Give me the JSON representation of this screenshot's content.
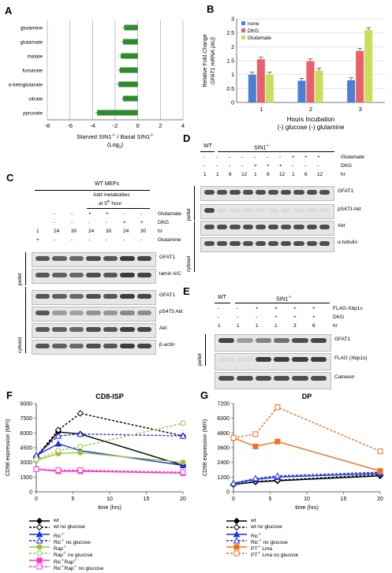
{
  "panels": {
    "A": "A",
    "B": "B",
    "C": "C",
    "D": "D",
    "E": "E",
    "F": "F",
    "G": "G"
  },
  "panelA": {
    "chart_data": {
      "type": "bar",
      "categories": [
        "glutamine",
        "glutamate",
        "malate",
        "fumarate",
        "α-ketoglutarate",
        "citrate",
        "pyruvate"
      ],
      "values": [
        -1.2,
        -1.3,
        -1.5,
        -1.6,
        -1.7,
        -1.3,
        -3.6
      ],
      "xlim": [
        -8,
        4
      ],
      "xticks": [
        "-8",
        "-6",
        "-4",
        "-2",
        "0",
        "2",
        "4"
      ],
      "xlabel_line1": "Starved SIN1",
      "xlabel_sup1": "-/-",
      "xlabel_mid": " / Basal SIN1",
      "xlabel_sup2": "-/-",
      "xlabel_line2": "(Log",
      "xlabel_sub": "2",
      "xlabel_end": ")",
      "bar_color": "#2e8b2e"
    }
  },
  "panelB": {
    "chart_data": {
      "type": "bar",
      "categories": [
        "1",
        "2",
        "3"
      ],
      "series": [
        {
          "name": "none",
          "values": [
            1.0,
            0.78,
            0.8
          ],
          "color": "#4a7fd4"
        },
        {
          "name": "DKG",
          "values": [
            1.55,
            1.48,
            1.85
          ],
          "color": "#e8606a"
        },
        {
          "name": "Glutamate",
          "values": [
            1.0,
            1.15,
            2.6
          ],
          "color": "#c7df5a"
        }
      ],
      "ylim": [
        0,
        3
      ],
      "yticks": [
        "0",
        "0.5",
        "1",
        "1.5",
        "2",
        "2.5",
        "3"
      ],
      "ylabel_line1": "Relative Fold Change",
      "ylabel_line2": "GFAT1 mRNA (AU)",
      "xlabel_line1": "Hours Incubation",
      "xlabel_line2": "(-) glucose (-) glutamine"
    }
  },
  "panelC": {
    "header": "WT MEFs",
    "subheader": "Add metabolites",
    "subheader2": "at 5",
    "subheader_sup": "th",
    "subheader_end": " hour",
    "rows": [
      {
        "label": "Glutamate",
        "cells": [
          "",
          "-",
          "-",
          "+",
          "+",
          "-",
          "-"
        ]
      },
      {
        "label": "DKG",
        "cells": [
          "",
          "-",
          "-",
          "-",
          "-",
          "+",
          "+"
        ]
      },
      {
        "label": "hr",
        "cells": [
          "1",
          "24",
          "30",
          "24",
          "30",
          "24",
          "30"
        ]
      },
      {
        "label": "Glutamine",
        "cells": [
          "+",
          "-",
          "-",
          "-",
          "-",
          "-",
          "-"
        ]
      }
    ],
    "blots": [
      "GFAT1",
      "lamin A/C",
      "GFAT1",
      "pS473 Akt",
      "Akt",
      "β-actin"
    ],
    "fractions": [
      "pellet",
      "cytosol"
    ]
  },
  "panelD": {
    "wt": "WT",
    "ko": "SIN1",
    "ko_sup": "-/-",
    "rows": [
      {
        "label": "Glutamate",
        "cells": [
          "-",
          "-",
          "-",
          "-",
          "-",
          "-",
          "-",
          "+",
          "+",
          "+"
        ]
      },
      {
        "label": "DKG",
        "cells": [
          "-",
          "-",
          "-",
          "-",
          "+",
          "+",
          "+",
          "-",
          "-",
          "-"
        ]
      },
      {
        "label": "hr",
        "cells": [
          "1",
          "1",
          "6",
          "12",
          "1",
          "6",
          "12",
          "1",
          "6",
          "12"
        ]
      }
    ],
    "blots": [
      "GFAT1",
      "pS473 Akt",
      "Akt",
      "α-tubulin"
    ],
    "fractions": [
      "pellet",
      "cytosol"
    ]
  },
  "panelE": {
    "wt": "WT",
    "ko": "SIN1",
    "ko_sup": "-/-",
    "rows": [
      {
        "label": "FLAG-Xbp1s",
        "cells": [
          "-",
          "-",
          "+",
          "+",
          "+",
          "+"
        ]
      },
      {
        "label": "DKG",
        "cells": [
          "-",
          "-",
          "-",
          "+",
          "+",
          "+"
        ]
      },
      {
        "label": "hr",
        "cells": [
          "1",
          "1",
          "1",
          "1",
          "3",
          "6"
        ]
      }
    ],
    "blots": [
      "GFAT1",
      "FLAG (Xbp1s)",
      "Calnexin"
    ],
    "fractions": [
      "pellet"
    ]
  },
  "panelF": {
    "chart_data": {
      "type": "line",
      "title": "CD8-ISP",
      "x": [
        0,
        3,
        6,
        20
      ],
      "ylim": [
        0,
        9000
      ],
      "yticks": [
        "0",
        "1500",
        "3000",
        "4500",
        "6000",
        "7500",
        "9000"
      ],
      "xticks": [
        "0",
        "5",
        "10",
        "15",
        "20"
      ],
      "ylabel": "CD98 expression (MFI)",
      "xlabel": "time (hrs)",
      "series": [
        {
          "name": "wt",
          "values": [
            3500,
            6100,
            5900,
            2700
          ],
          "color": "#000000",
          "dashed": false,
          "marker": "diamond",
          "filled": true
        },
        {
          "name": "wt no glucose",
          "values": [
            3600,
            6300,
            8000,
            5700
          ],
          "color": "#000000",
          "dashed": true,
          "marker": "diamond",
          "filled": false
        },
        {
          "name": "Ric",
          "values": [
            3700,
            4900,
            4200,
            2700
          ],
          "color": "#1a2fe0",
          "dashed": false,
          "marker": "triangle",
          "filled": true
        },
        {
          "name": "Ric no glucose",
          "values": [
            3700,
            5700,
            5900,
            5700
          ],
          "color": "#1a2fe0",
          "dashed": true,
          "marker": "triangle",
          "filled": false
        },
        {
          "name": "Rap",
          "values": [
            3200,
            3900,
            4000,
            3000
          ],
          "color": "#9ac13c",
          "dashed": false,
          "marker": "circle",
          "filled": true
        },
        {
          "name": "Rap no glucose",
          "values": [
            3300,
            4200,
            4600,
            7000
          ],
          "color": "#9ac13c",
          "dashed": true,
          "marker": "circle",
          "filled": false
        },
        {
          "name": "Ric/Rap",
          "values": [
            2300,
            2100,
            2100,
            1900
          ],
          "color": "#ff33cc",
          "dashed": false,
          "marker": "square",
          "filled": true
        },
        {
          "name": "Ric/Rap no glucose",
          "values": [
            2300,
            2200,
            2200,
            2000
          ],
          "color": "#ff33cc",
          "dashed": true,
          "marker": "square",
          "filled": false
        }
      ]
    },
    "legend": [
      {
        "text": "wt",
        "sup": ""
      },
      {
        "text": "wt no glucose",
        "sup": ""
      },
      {
        "text": "Ric",
        "sup": "-/-",
        "after": ""
      },
      {
        "text": "Ric",
        "sup": "-/-",
        "after": " no glucose"
      },
      {
        "text": "Rap",
        "sup": "-/-",
        "after": ""
      },
      {
        "text": "Rap",
        "sup": "-/-",
        "after": " no glucose"
      },
      {
        "text": "Ric",
        "sup": "-/-",
        "mid": "Rap",
        "sup2": "-/-",
        "after": ""
      },
      {
        "text": "Ric",
        "sup": "-/-",
        "mid": "Rap",
        "sup2": "-/-",
        "after": " no glucose"
      }
    ]
  },
  "panelG": {
    "chart_data": {
      "type": "line",
      "title": "DP",
      "x": [
        0,
        3,
        6,
        20
      ],
      "ylim": [
        0,
        7200
      ],
      "yticks": [
        "0",
        "1200",
        "2400",
        "3600",
        "4800",
        "6000",
        "7200"
      ],
      "xticks": [
        "0",
        "5",
        "10",
        "15",
        "20"
      ],
      "ylabel": "CD98 expression (MFI)",
      "xlabel": "time (hrs)",
      "series": [
        {
          "name": "wt",
          "values": [
            600,
            800,
            900,
            1300
          ],
          "color": "#000000",
          "dashed": false,
          "marker": "diamond",
          "filled": true
        },
        {
          "name": "wt no glucose",
          "values": [
            600,
            850,
            950,
            1400
          ],
          "color": "#000000",
          "dashed": true,
          "marker": "diamond",
          "filled": false
        },
        {
          "name": "Ric",
          "values": [
            700,
            1000,
            1200,
            1500
          ],
          "color": "#1a2fe0",
          "dashed": false,
          "marker": "triangle",
          "filled": true
        },
        {
          "name": "Ric no glucose",
          "values": [
            700,
            1100,
            1300,
            1600
          ],
          "color": "#1a2fe0",
          "dashed": true,
          "marker": "triangle",
          "filled": false
        },
        {
          "name": "PT Lma",
          "values": [
            4400,
            3700,
            4100,
            1700
          ],
          "color": "#f07020",
          "dashed": false,
          "marker": "square",
          "filled": true
        },
        {
          "name": "PT Lma no glucose",
          "values": [
            4400,
            4700,
            6900,
            3300
          ],
          "color": "#f07020",
          "dashed": true,
          "marker": "square",
          "filled": false
        }
      ]
    },
    "legend": [
      {
        "text": "wt",
        "sup": ""
      },
      {
        "text": "wt no glucose",
        "sup": ""
      },
      {
        "text": "Ric",
        "sup": "-/-",
        "after": ""
      },
      {
        "text": "Ric",
        "sup": "-/-",
        "after": " no glucose"
      },
      {
        "text": "PT",
        "sup": "-/-",
        "after": " Lma"
      },
      {
        "text": "PT",
        "sup": "-/-",
        "after": " Lma no glucose"
      }
    ]
  }
}
